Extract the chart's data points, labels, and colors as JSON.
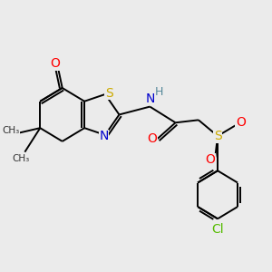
{
  "background_color": "#ebebeb",
  "figsize": [
    3.0,
    3.0
  ],
  "dpi": 100,
  "bond_color": "#000000",
  "bond_width": 1.4,
  "atom_colors": {
    "O": "#ff0000",
    "S": "#ccaa00",
    "N": "#0000cc",
    "Cl": "#55bb00",
    "C": "#000000",
    "H": "#558899"
  }
}
